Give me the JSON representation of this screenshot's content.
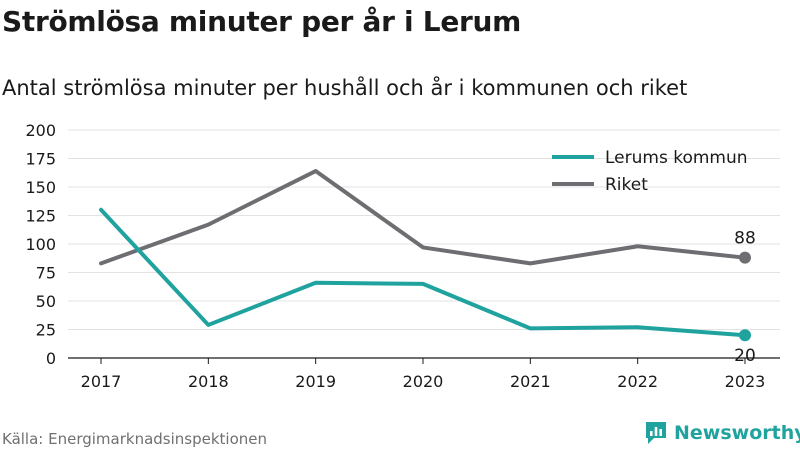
{
  "title": "Strömlösa minuter per år i Lerum",
  "subtitle": "Antal strömlösa minuter per hushåll och år i kommunen och riket",
  "source": "Källa: Energimarknadsinspektionen",
  "brand": {
    "name": "Newsworthy",
    "icon": "newsworthy-logo-icon",
    "color": "#20a39e"
  },
  "chart_data": {
    "type": "line",
    "x": [
      "2017",
      "2018",
      "2019",
      "2020",
      "2021",
      "2022",
      "2023"
    ],
    "yticks": [
      0,
      25,
      50,
      75,
      100,
      125,
      150,
      175,
      200
    ],
    "ylim": [
      0,
      200
    ],
    "grid": true,
    "legend_position": "top-right",
    "series": [
      {
        "name": "Lerums kommun",
        "color": "#20a39e",
        "values": [
          130,
          29,
          66,
          65,
          26,
          27,
          20
        ],
        "end_label": "20"
      },
      {
        "name": "Riket",
        "color": "#6e6e72",
        "values": [
          83,
          117,
          164,
          97,
          83,
          98,
          88
        ],
        "end_label": "88"
      }
    ]
  }
}
